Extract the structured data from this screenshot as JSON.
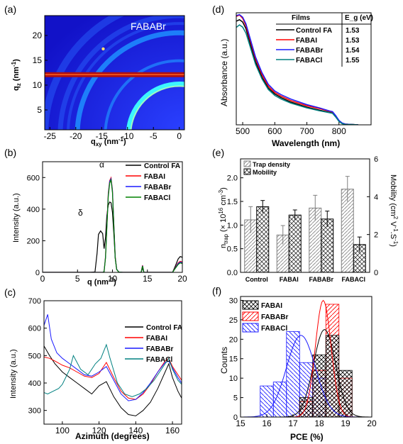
{
  "chart_data": [
    {
      "panel": "(a)",
      "type": "heatmap",
      "title": "FABABr",
      "xlabel": "q_xy (nm⁻¹)",
      "ylabel": "q_z (nm⁻¹)",
      "xlim": [
        -26,
        1
      ],
      "ylim": [
        1,
        24
      ],
      "x_ticks": [
        -25,
        -20,
        -15,
        -10,
        -5,
        0
      ],
      "y_ticks": [
        5,
        10,
        15,
        20
      ],
      "colors": {
        "background": "#1a22d8",
        "ring": "#1f8fff",
        "bright_ring": "#3cf5ff",
        "band": "#b01010"
      },
      "band_qz": [
        11.6,
        12.6
      ],
      "rings_q": [
        9.8,
        14.3,
        19.7
      ]
    },
    {
      "panel": "(b)",
      "type": "line",
      "xlabel": "q (nm⁻¹)",
      "ylabel": "Intensity (a.u.)",
      "xlim": [
        0,
        20
      ],
      "ylim": [
        0,
        700
      ],
      "x_ticks": [
        0,
        5,
        10,
        15,
        20
      ],
      "y_ticks": [
        0,
        200,
        400,
        600
      ],
      "annotations": [
        {
          "text": "α",
          "x": 9.8,
          "y": 640
        },
        {
          "text": "δ",
          "x": 7.6,
          "y": 370
        }
      ],
      "legend": "top-right",
      "series": [
        {
          "name": "Control FA",
          "color": "#000000",
          "x": [
            0,
            6.8,
            7.5,
            7.8,
            8.0,
            8.3,
            8.6,
            8.8,
            9.0,
            9.2,
            9.4,
            9.6,
            9.8,
            10.0,
            10.2,
            10.4,
            10.6,
            10.9,
            11.5,
            13.0,
            14.1,
            14.3,
            14.5,
            16,
            18.6,
            19.0,
            19.4,
            19.7,
            20
          ],
          "y": [
            0,
            0,
            3,
            120,
            240,
            262,
            245,
            150,
            220,
            360,
            425,
            445,
            440,
            380,
            240,
            90,
            20,
            2,
            0,
            0,
            0,
            28,
            0,
            0,
            0,
            40,
            85,
            100,
            95
          ]
        },
        {
          "name": "FABAI",
          "color": "#ff0000",
          "x": [
            0,
            8.6,
            8.8,
            9.0,
            9.2,
            9.4,
            9.6,
            9.8,
            10.0,
            10.2,
            10.4,
            10.6,
            10.9,
            11.5,
            13,
            14.1,
            14.3,
            14.5,
            16,
            18.6,
            19.0,
            19.4,
            19.7,
            20
          ],
          "y": [
            0,
            0,
            5,
            100,
            300,
            500,
            580,
            598,
            520,
            300,
            100,
            20,
            2,
            0,
            0,
            0,
            45,
            0,
            0,
            0,
            30,
            60,
            70,
            65
          ]
        },
        {
          "name": "FABABr",
          "color": "#1a1aff",
          "x": [
            0,
            8.6,
            8.8,
            9.0,
            9.2,
            9.4,
            9.6,
            9.8,
            10.0,
            10.2,
            10.4,
            10.6,
            10.9,
            11.5,
            13,
            14.1,
            14.3,
            14.5,
            16,
            18.6,
            19.0,
            19.4,
            19.7,
            20
          ],
          "y": [
            0,
            0,
            5,
            95,
            290,
            490,
            575,
            592,
            515,
            295,
            95,
            20,
            2,
            0,
            0,
            0,
            42,
            0,
            0,
            0,
            28,
            55,
            65,
            60
          ]
        },
        {
          "name": "FABACl",
          "color": "#008000",
          "x": [
            0,
            8.6,
            8.8,
            9.0,
            9.2,
            9.4,
            9.6,
            9.8,
            10.0,
            10.2,
            10.4,
            10.6,
            10.9,
            11.5,
            13,
            14.1,
            14.3,
            14.5,
            16,
            18.6,
            19.0,
            19.4,
            19.7,
            20
          ],
          "y": [
            0,
            0,
            4,
            90,
            280,
            480,
            565,
            585,
            505,
            285,
            90,
            18,
            2,
            0,
            0,
            0,
            40,
            0,
            0,
            0,
            25,
            50,
            60,
            55
          ]
        }
      ]
    },
    {
      "panel": "(c)",
      "type": "line",
      "xlabel": "Azimuth (degrees)",
      "ylabel": "Intensity (a.u.)",
      "xlim": [
        90,
        165
      ],
      "ylim": [
        250,
        700
      ],
      "x_ticks": [
        100,
        120,
        140,
        160
      ],
      "y_ticks": [
        300,
        400,
        500,
        600,
        700
      ],
      "legend": "top-right",
      "series": [
        {
          "name": "Control FA",
          "color": "#000000",
          "x": [
            90,
            93,
            96,
            100,
            104,
            108,
            112,
            116,
            120,
            124,
            128,
            132,
            136,
            140,
            144,
            148,
            152,
            156,
            158,
            160,
            163,
            165
          ],
          "y": [
            535,
            500,
            470,
            440,
            420,
            400,
            380,
            360,
            390,
            405,
            350,
            310,
            285,
            280,
            300,
            330,
            380,
            440,
            470,
            420,
            370,
            345
          ]
        },
        {
          "name": "FABAI",
          "color": "#ff0000",
          "x": [
            90,
            93,
            96,
            100,
            104,
            108,
            112,
            116,
            120,
            124,
            128,
            132,
            136,
            140,
            144,
            148,
            152,
            156,
            158,
            160,
            163,
            165
          ],
          "y": [
            495,
            490,
            480,
            465,
            455,
            440,
            425,
            420,
            435,
            475,
            420,
            370,
            345,
            340,
            360,
            395,
            440,
            480,
            490,
            460,
            430,
            410
          ]
        },
        {
          "name": "FABABr",
          "color": "#1a1aff",
          "x": [
            90,
            92,
            94,
            97,
            100,
            104,
            108,
            112,
            116,
            120,
            124,
            128,
            132,
            136,
            140,
            144,
            148,
            152,
            156,
            158,
            160,
            163,
            165
          ],
          "y": [
            610,
            650,
            560,
            510,
            490,
            470,
            450,
            430,
            425,
            440,
            460,
            410,
            360,
            335,
            340,
            365,
            400,
            440,
            475,
            480,
            455,
            420,
            400
          ]
        },
        {
          "name": "FABACl",
          "color": "#008080",
          "x": [
            90,
            92,
            95,
            98,
            100,
            104,
            106,
            110,
            114,
            118,
            121,
            124,
            126,
            130,
            134,
            138,
            142,
            146,
            150,
            154,
            158,
            160,
            163,
            165
          ],
          "y": [
            365,
            360,
            370,
            380,
            395,
            450,
            500,
            450,
            430,
            470,
            490,
            540,
            490,
            400,
            360,
            350,
            360,
            380,
            410,
            450,
            490,
            450,
            410,
            395
          ]
        }
      ]
    },
    {
      "panel": "(d)",
      "type": "line",
      "xlabel": "Wavelength (nm)",
      "ylabel": "Absorbance (a.u.)",
      "xlim": [
        480,
        900
      ],
      "ylim": [
        0,
        3.05
      ],
      "x_ticks": [
        500,
        600,
        700,
        800
      ],
      "legend": "top-right",
      "table": {
        "headers": [
          "Films",
          "E_g (eV)"
        ],
        "rows": [
          [
            "Control FA",
            "1.53"
          ],
          [
            "FABAI",
            "1.53"
          ],
          [
            "FABABr",
            "1.54"
          ],
          [
            "FABACl",
            "1.55"
          ]
        ]
      },
      "series": [
        {
          "name": "Control FA",
          "color": "#000000",
          "x": [
            480,
            490,
            500,
            510,
            520,
            540,
            560,
            580,
            600,
            620,
            650,
            700,
            740,
            770,
            780,
            790,
            800,
            810,
            820,
            840,
            860
          ],
          "y": [
            2.82,
            2.86,
            2.8,
            2.62,
            2.32,
            1.72,
            1.3,
            1.0,
            0.84,
            0.74,
            0.62,
            0.48,
            0.4,
            0.34,
            0.32,
            0.22,
            0.1,
            0.04,
            0.02,
            0.01,
            0
          ]
        },
        {
          "name": "FABAI",
          "color": "#ff0000",
          "x": [
            480,
            490,
            500,
            510,
            520,
            540,
            560,
            580,
            600,
            620,
            650,
            700,
            740,
            770,
            780,
            790,
            800,
            810,
            820,
            840,
            860
          ],
          "y": [
            2.95,
            2.99,
            2.9,
            2.7,
            2.4,
            1.8,
            1.37,
            1.05,
            0.88,
            0.78,
            0.66,
            0.52,
            0.44,
            0.37,
            0.35,
            0.24,
            0.11,
            0.04,
            0.02,
            0.01,
            0
          ]
        },
        {
          "name": "FABABr",
          "color": "#1a1aff",
          "x": [
            480,
            490,
            500,
            510,
            520,
            540,
            560,
            580,
            600,
            620,
            650,
            700,
            740,
            770,
            780,
            790,
            800,
            810,
            820,
            840,
            860
          ],
          "y": [
            2.97,
            3.0,
            2.93,
            2.75,
            2.45,
            1.85,
            1.42,
            1.1,
            0.92,
            0.82,
            0.7,
            0.55,
            0.46,
            0.38,
            0.36,
            0.25,
            0.12,
            0.05,
            0.02,
            0.01,
            0
          ]
        },
        {
          "name": "FABACl",
          "color": "#008080",
          "x": [
            480,
            490,
            500,
            510,
            520,
            540,
            560,
            580,
            600,
            620,
            650,
            700,
            740,
            770,
            780,
            790,
            800,
            810,
            820,
            840,
            860
          ],
          "y": [
            2.65,
            2.72,
            2.66,
            2.5,
            2.22,
            1.65,
            1.25,
            0.96,
            0.8,
            0.7,
            0.59,
            0.46,
            0.38,
            0.33,
            0.31,
            0.21,
            0.09,
            0.03,
            0.01,
            0.01,
            0
          ]
        }
      ]
    },
    {
      "panel": "(e)",
      "type": "bar",
      "categories": [
        "Control",
        "FABAI",
        "FABABr",
        "FABACl"
      ],
      "ylabel_left": "n_trap (× 10¹⁶ cm⁻³)",
      "ylabel_right": "Mobility (cm² V⁻¹ S⁻¹)",
      "ylim_left": [
        0,
        2.4
      ],
      "ylim_right": [
        0,
        6
      ],
      "y_ticks_left": [
        0.0,
        0.5,
        1.0,
        1.5,
        2.0
      ],
      "y_ticks_right": [
        0,
        2,
        4,
        6
      ],
      "legend": "top-left",
      "series": [
        {
          "name": "Trap density",
          "axis": "left",
          "values": [
            1.11,
            0.79,
            1.36,
            1.76
          ],
          "errors": [
            0.28,
            0.2,
            0.27,
            0.27
          ]
        },
        {
          "name": "Mobility",
          "axis": "right",
          "values": [
            3.47,
            3.03,
            2.82,
            1.47
          ],
          "errors": [
            0.33,
            0.27,
            0.42,
            0.4
          ]
        }
      ]
    },
    {
      "panel": "(f)",
      "type": "bar",
      "xlabel": "PCE (%)",
      "ylabel": "Counts",
      "xlim": [
        15,
        20
      ],
      "ylim": [
        0,
        31
      ],
      "x_ticks": [
        15,
        16,
        17,
        18,
        19,
        20
      ],
      "y_ticks": [
        0,
        5,
        10,
        15,
        20,
        25,
        30
      ],
      "legend": "top-left",
      "series": [
        {
          "name": "FABAI",
          "color": "#000000",
          "pattern": "cross",
          "bins": [
            [
              17.25,
              17.75,
              5
            ],
            [
              17.75,
              18.25,
              16
            ],
            [
              18.25,
              18.75,
              21
            ],
            [
              18.75,
              19.25,
              12
            ]
          ],
          "fit": {
            "mean": 18.2,
            "sd": 0.42,
            "peak": 22.5
          }
        },
        {
          "name": "FABABr",
          "color": "#ff0000",
          "pattern": "hatch-right",
          "bins": [
            [
              17.25,
              17.75,
              4
            ],
            [
              17.75,
              18.25,
              12
            ],
            [
              18.25,
              18.75,
              29
            ],
            [
              18.75,
              19.25,
              10
            ]
          ],
          "fit": {
            "mean": 18.15,
            "sd": 0.3,
            "peak": 30
          }
        },
        {
          "name": "FABACl",
          "color": "#1a1aff",
          "pattern": "hatch-left",
          "bins": [
            [
              15.75,
              16.25,
              8
            ],
            [
              16.25,
              16.75,
              9
            ],
            [
              16.75,
              17.25,
              22
            ],
            [
              17.25,
              17.75,
              14
            ],
            [
              17.75,
              18.25,
              10
            ]
          ],
          "fit": {
            "mean": 17.3,
            "sd": 0.55,
            "peak": 21
          }
        }
      ]
    }
  ],
  "labels": {
    "panel_a": "(a)",
    "panel_b": "(b)",
    "panel_c": "(c)",
    "panel_d": "(d)",
    "panel_e": "(e)",
    "panel_f": "(f)",
    "alpha": "α",
    "delta": "δ",
    "a_title": "FABABr",
    "b_xlabel": "q (nm⁻¹)",
    "b_ylabel": "Intensity (a.u.)",
    "c_xlabel": "Azimuth (degrees)",
    "c_ylabel": "Intensity (a.u.)",
    "d_xlabel": "Wavelength (nm)",
    "d_ylabel": "Absorbance (a.u.)",
    "f_xlabel": "PCE (%)",
    "f_ylabel": "Counts"
  }
}
